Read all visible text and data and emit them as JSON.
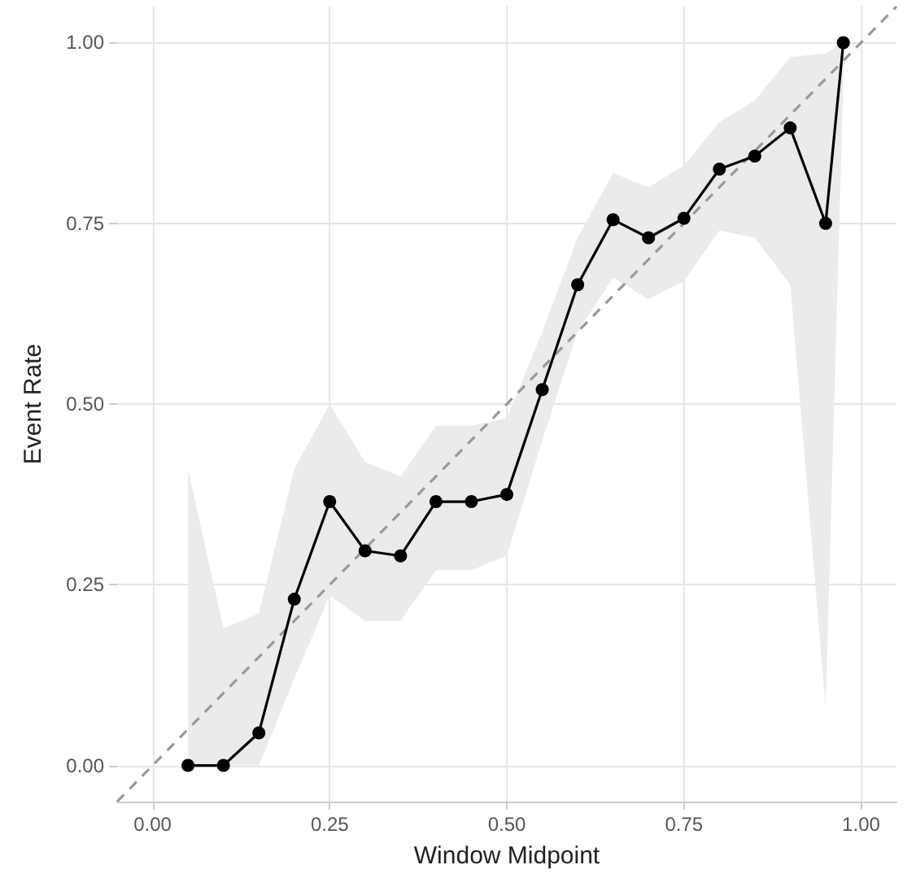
{
  "chart_data": {
    "type": "line",
    "xlabel": "Window Midpoint",
    "ylabel": "Event Rate",
    "xlim": [
      -0.05,
      1.05
    ],
    "ylim": [
      -0.05,
      1.05
    ],
    "xticks": [
      {
        "value": 0,
        "label": "0.00"
      },
      {
        "value": 0.25,
        "label": "0.25"
      },
      {
        "value": 0.5,
        "label": "0.50"
      },
      {
        "value": 0.75,
        "label": "0.75"
      },
      {
        "value": 1,
        "label": "1.00"
      }
    ],
    "yticks": [
      {
        "value": 0,
        "label": "0.00"
      },
      {
        "value": 0.25,
        "label": "0.25"
      },
      {
        "value": 0.5,
        "label": "0.50"
      },
      {
        "value": 0.75,
        "label": "0.75"
      },
      {
        "value": 1,
        "label": "1.00"
      }
    ],
    "grid": true,
    "marker": "circle",
    "series": [
      {
        "type": "line",
        "color": "#999999",
        "line_style": "dashed",
        "marker": "none",
        "x": [
          -0.05,
          1.05
        ],
        "values": [
          -0.05,
          1.05
        ]
      },
      {
        "color": "#000000",
        "line_style": "solid",
        "x": [
          0.05,
          0.1,
          0.15,
          0.2,
          0.25,
          0.3,
          0.35,
          0.4,
          0.45,
          0.5,
          0.55,
          0.6,
          0.65,
          0.7,
          0.75,
          0.8,
          0.85,
          0.9,
          0.95,
          0.975
        ],
        "values": [
          0,
          0,
          0.045,
          0.23,
          0.365,
          0.297,
          0.29,
          0.365,
          0.365,
          0.375,
          0.52,
          0.665,
          0.755,
          0.73,
          0.757,
          0.825,
          0.843,
          0.882,
          0.75,
          1.0
        ],
        "lower": [
          0,
          0,
          0,
          0.12,
          0.235,
          0.2,
          0.2,
          0.27,
          0.27,
          0.29,
          0.45,
          0.6,
          0.675,
          0.645,
          0.67,
          0.74,
          0.73,
          0.665,
          0.08,
          0.95
        ],
        "upper": [
          0.41,
          0.19,
          0.21,
          0.41,
          0.5,
          0.42,
          0.4,
          0.47,
          0.47,
          0.48,
          0.6,
          0.73,
          0.82,
          0.8,
          0.83,
          0.89,
          0.92,
          0.98,
          0.985,
          1.0
        ]
      }
    ]
  }
}
